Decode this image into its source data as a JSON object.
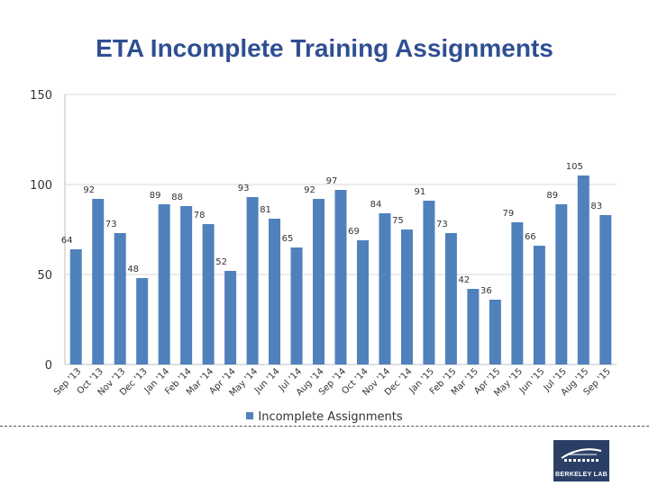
{
  "chart_data": {
    "type": "bar",
    "title": "ETA Incomplete Training Assignments",
    "categories": [
      "Sep '13",
      "Oct '13",
      "Nov '13",
      "Dec '13",
      "Jan '14",
      "Feb '14",
      "Mar '14",
      "Apr '14",
      "May '14",
      "Jun '14",
      "Jul '14",
      "Aug '14",
      "Sep '14",
      "Oct '14",
      "Nov '14",
      "Dec '14",
      "Jan '15",
      "Feb '15",
      "Mar '15",
      "Apr '15",
      "May '15",
      "Jun '15",
      "Jul '15",
      "Aug '15",
      "Sep '15"
    ],
    "series": [
      {
        "name": "Incomplete Assignments",
        "values": [
          64,
          92,
          73,
          48,
          89,
          88,
          78,
          52,
          93,
          81,
          65,
          92,
          97,
          69,
          84,
          75,
          91,
          73,
          42,
          36,
          79,
          66,
          89,
          105,
          83
        ]
      }
    ],
    "yticks": [
      "0",
      "50",
      "100",
      "150"
    ],
    "ylim": [
      0,
      150
    ],
    "grid": true,
    "legend_position": "bottom",
    "bar_color": "#4f81bd"
  },
  "logo": {
    "text": "BERKELEY LAB",
    "background": "#2b3f66"
  }
}
